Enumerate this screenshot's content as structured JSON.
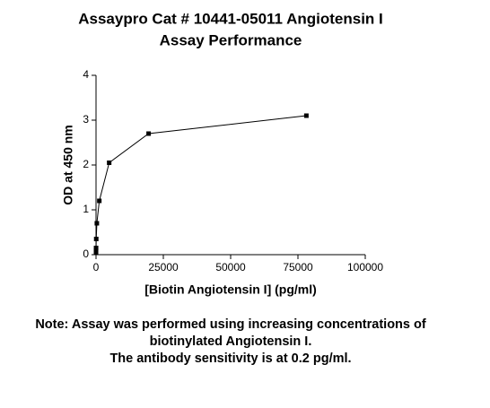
{
  "chart_data": {
    "type": "line",
    "title": [
      "Assaypro Cat # 10441-05011 Angiotensin I",
      "Assay Performance"
    ],
    "x_label": "[Biotin Angiotensin I] (pg/ml)",
    "y_label": "OD at 450 nm",
    "x": [
      78125,
      19531,
      4883,
      1221,
      305,
      76,
      19,
      5,
      1,
      0
    ],
    "series": [
      {
        "name": "Angiotensin I",
        "color": "#000000",
        "values": [
          3.1,
          2.7,
          2.05,
          1.2,
          0.7,
          0.35,
          0.15,
          0.1,
          0.07,
          0.05
        ]
      }
    ],
    "xlim": [
      0,
      100000
    ],
    "xticks": [
      0,
      25000,
      50000,
      75000,
      100000
    ],
    "ylim": [
      0,
      4
    ],
    "yticks": [
      0,
      1,
      2,
      3,
      4
    ],
    "grid": false,
    "note": [
      "Note: Assay was performed using increasing concentrations of",
      "biotinylated Angiotensin I.",
      "The antibody sensitivity is at 0.2 pg/ml."
    ]
  }
}
